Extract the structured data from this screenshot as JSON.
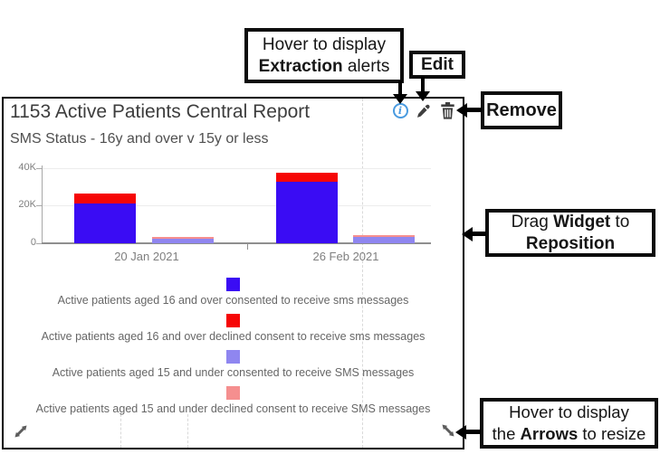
{
  "widget": {
    "title": "1153 Active Patients Central Report",
    "subtitle": "SMS Status - 16y and over v 15y or less",
    "toolbar_icons": [
      "info-icon",
      "edit-pencil-icon",
      "remove-trash-icon"
    ],
    "resize_handles": [
      "bottom-left",
      "bottom-right"
    ]
  },
  "chart_data": {
    "type": "bar",
    "stacked": true,
    "title": "SMS Status - 16y and over v 15y or less",
    "categories": [
      "20 Jan 2021",
      "26 Feb 2021"
    ],
    "series": [
      {
        "name": "Active patients aged 16 and over consented to receive sms messages",
        "color": "#3A0CF4",
        "stack": "16-and-over",
        "values": [
          21000,
          33000
        ]
      },
      {
        "name": "Active patients aged 16 and over declined consent to receive sms messages",
        "color": "#F60606",
        "stack": "16-and-over",
        "values": [
          5500,
          5000
        ]
      },
      {
        "name": "Active patients aged 15 and under consented to receive SMS messages",
        "color": "#8F86F0",
        "stack": "15-and-under",
        "values": [
          2600,
          3300
        ]
      },
      {
        "name": "Active patients aged 15 and under declined consent to receive SMS messages",
        "color": "#F58F8F",
        "stack": "15-and-under",
        "values": [
          1200,
          1000
        ]
      }
    ],
    "ylim": [
      0,
      40000
    ],
    "yticks": [
      "0",
      "20K",
      "40K"
    ],
    "grid": "horizontal",
    "legend_position": "bottom"
  },
  "callouts": {
    "extraction": {
      "line1": "Hover to display",
      "line2_bold": "Extraction",
      "line2_rest": " alerts"
    },
    "edit": {
      "label": "Edit"
    },
    "remove": {
      "label": "Remove"
    },
    "reposition": {
      "line1_pre": "Drag ",
      "line1_bold": "Widget",
      "line1_post": " to",
      "line2_bold": "Reposition"
    },
    "resize": {
      "line1": "Hover to display",
      "line2_pre": "the ",
      "line2_bold": "Arrows",
      "line2_post": " to resize"
    }
  },
  "colors": {
    "info_icon_blue": "#4A9BE0",
    "icon_gray": "#3F3F3F",
    "bar_blue": "#3A0CF4",
    "bar_red": "#F60606",
    "bar_lavender": "#8F86F0",
    "bar_salmon": "#F58F8F",
    "annotation_black": "#0C0C0C"
  }
}
